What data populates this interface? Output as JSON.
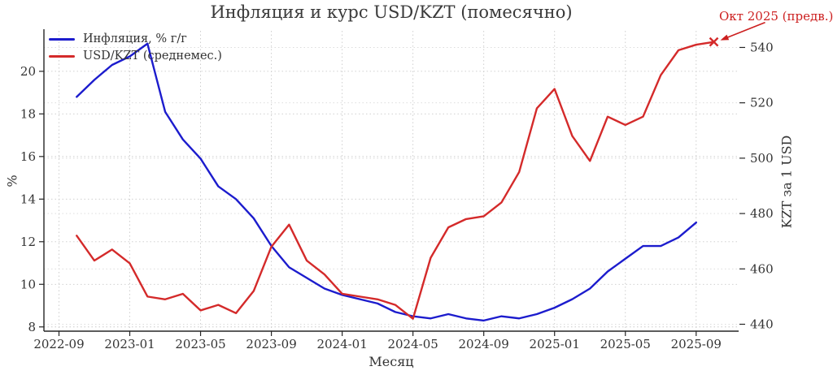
{
  "title": "Инфляция и курс USD/KZT (помесячно)",
  "xlabel": "Месяц",
  "ylabel_left": "%",
  "ylabel_right": "KZT за 1 USD",
  "legend": [
    {
      "label": "Инфляция, % г/г",
      "color": "#1c1ccd"
    },
    {
      "label": "USD/KZT (среднемес.)",
      "color": "#d42a2a"
    }
  ],
  "annotation": {
    "text": "Окт 2025 (предв.)",
    "color": "#cc1f1f"
  },
  "colors": {
    "grid_left": "#c9c9c9",
    "grid_right": "#d8d8d8",
    "spine": "#262626",
    "tick_text": "#333333"
  },
  "chart_data": {
    "type": "line",
    "title": "Инфляция и курс USD/KZT (помесячно)",
    "xlabel": "Месяц",
    "grid": true,
    "legend_position": "upper left",
    "x_ticks": [
      "2022-09",
      "2023-01",
      "2023-05",
      "2023-09",
      "2024-01",
      "2024-05",
      "2024-09",
      "2025-01",
      "2025-05",
      "2025-09"
    ],
    "x_range_months_from_2022_09": [
      -0.85,
      38.4
    ],
    "left_axis": {
      "label": "%",
      "ticks": [
        8,
        10,
        12,
        14,
        16,
        18,
        20
      ],
      "range": [
        7.8,
        21.9
      ]
    },
    "right_axis": {
      "label": "KZT за 1 USD",
      "ticks": [
        440,
        460,
        480,
        500,
        520,
        540
      ],
      "range": [
        437.5,
        546
      ]
    },
    "series": [
      {
        "name": "Инфляция, % г/г",
        "axis": "left",
        "color": "#1c1ccd",
        "points": [
          [
            "2022-10",
            18.8
          ],
          [
            "2022-11",
            19.6
          ],
          [
            "2022-12",
            20.3
          ],
          [
            "2023-01",
            20.7
          ],
          [
            "2023-02",
            21.3
          ],
          [
            "2023-03",
            18.1
          ],
          [
            "2023-04",
            16.8
          ],
          [
            "2023-05",
            15.9
          ],
          [
            "2023-06",
            14.6
          ],
          [
            "2023-07",
            14.0
          ],
          [
            "2023-08",
            13.1
          ],
          [
            "2023-09",
            11.8
          ],
          [
            "2023-10",
            10.8
          ],
          [
            "2023-11",
            10.3
          ],
          [
            "2023-12",
            9.8
          ],
          [
            "2024-01",
            9.5
          ],
          [
            "2024-02",
            9.3
          ],
          [
            "2024-03",
            9.1
          ],
          [
            "2024-04",
            8.7
          ],
          [
            "2024-05",
            8.5
          ],
          [
            "2024-06",
            8.4
          ],
          [
            "2024-07",
            8.6
          ],
          [
            "2024-08",
            8.4
          ],
          [
            "2024-09",
            8.3
          ],
          [
            "2024-10",
            8.5
          ],
          [
            "2024-11",
            8.4
          ],
          [
            "2024-12",
            8.6
          ],
          [
            "2025-01",
            8.9
          ],
          [
            "2025-02",
            9.3
          ],
          [
            "2025-03",
            9.8
          ],
          [
            "2025-04",
            10.6
          ],
          [
            "2025-05",
            11.2
          ],
          [
            "2025-06",
            11.8
          ],
          [
            "2025-07",
            11.8
          ],
          [
            "2025-08",
            12.2
          ],
          [
            "2025-09",
            12.9
          ]
        ]
      },
      {
        "name": "USD/KZT (среднемес.)",
        "axis": "right",
        "color": "#d42a2a",
        "end_marker": "x",
        "end_annotation": "Окт 2025 (предв.)",
        "points": [
          [
            "2022-10",
            472
          ],
          [
            "2022-11",
            463
          ],
          [
            "2022-12",
            467
          ],
          [
            "2023-01",
            462
          ],
          [
            "2023-02",
            450
          ],
          [
            "2023-03",
            449
          ],
          [
            "2023-04",
            451
          ],
          [
            "2023-05",
            445
          ],
          [
            "2023-06",
            447
          ],
          [
            "2023-07",
            444
          ],
          [
            "2023-08",
            452
          ],
          [
            "2023-09",
            468
          ],
          [
            "2023-10",
            476
          ],
          [
            "2023-11",
            463
          ],
          [
            "2023-12",
            458
          ],
          [
            "2024-01",
            451
          ],
          [
            "2024-02",
            450
          ],
          [
            "2024-03",
            449
          ],
          [
            "2024-04",
            447
          ],
          [
            "2024-05",
            442
          ],
          [
            "2024-06",
            464
          ],
          [
            "2024-07",
            475
          ],
          [
            "2024-08",
            478
          ],
          [
            "2024-09",
            479
          ],
          [
            "2024-10",
            484
          ],
          [
            "2024-11",
            495
          ],
          [
            "2024-12",
            518
          ],
          [
            "2025-01",
            525
          ],
          [
            "2025-02",
            508
          ],
          [
            "2025-03",
            499
          ],
          [
            "2025-04",
            515
          ],
          [
            "2025-05",
            512
          ],
          [
            "2025-06",
            515
          ],
          [
            "2025-07",
            530
          ],
          [
            "2025-08",
            539
          ],
          [
            "2025-09",
            541
          ],
          [
            "2025-10",
            542
          ]
        ]
      }
    ]
  }
}
